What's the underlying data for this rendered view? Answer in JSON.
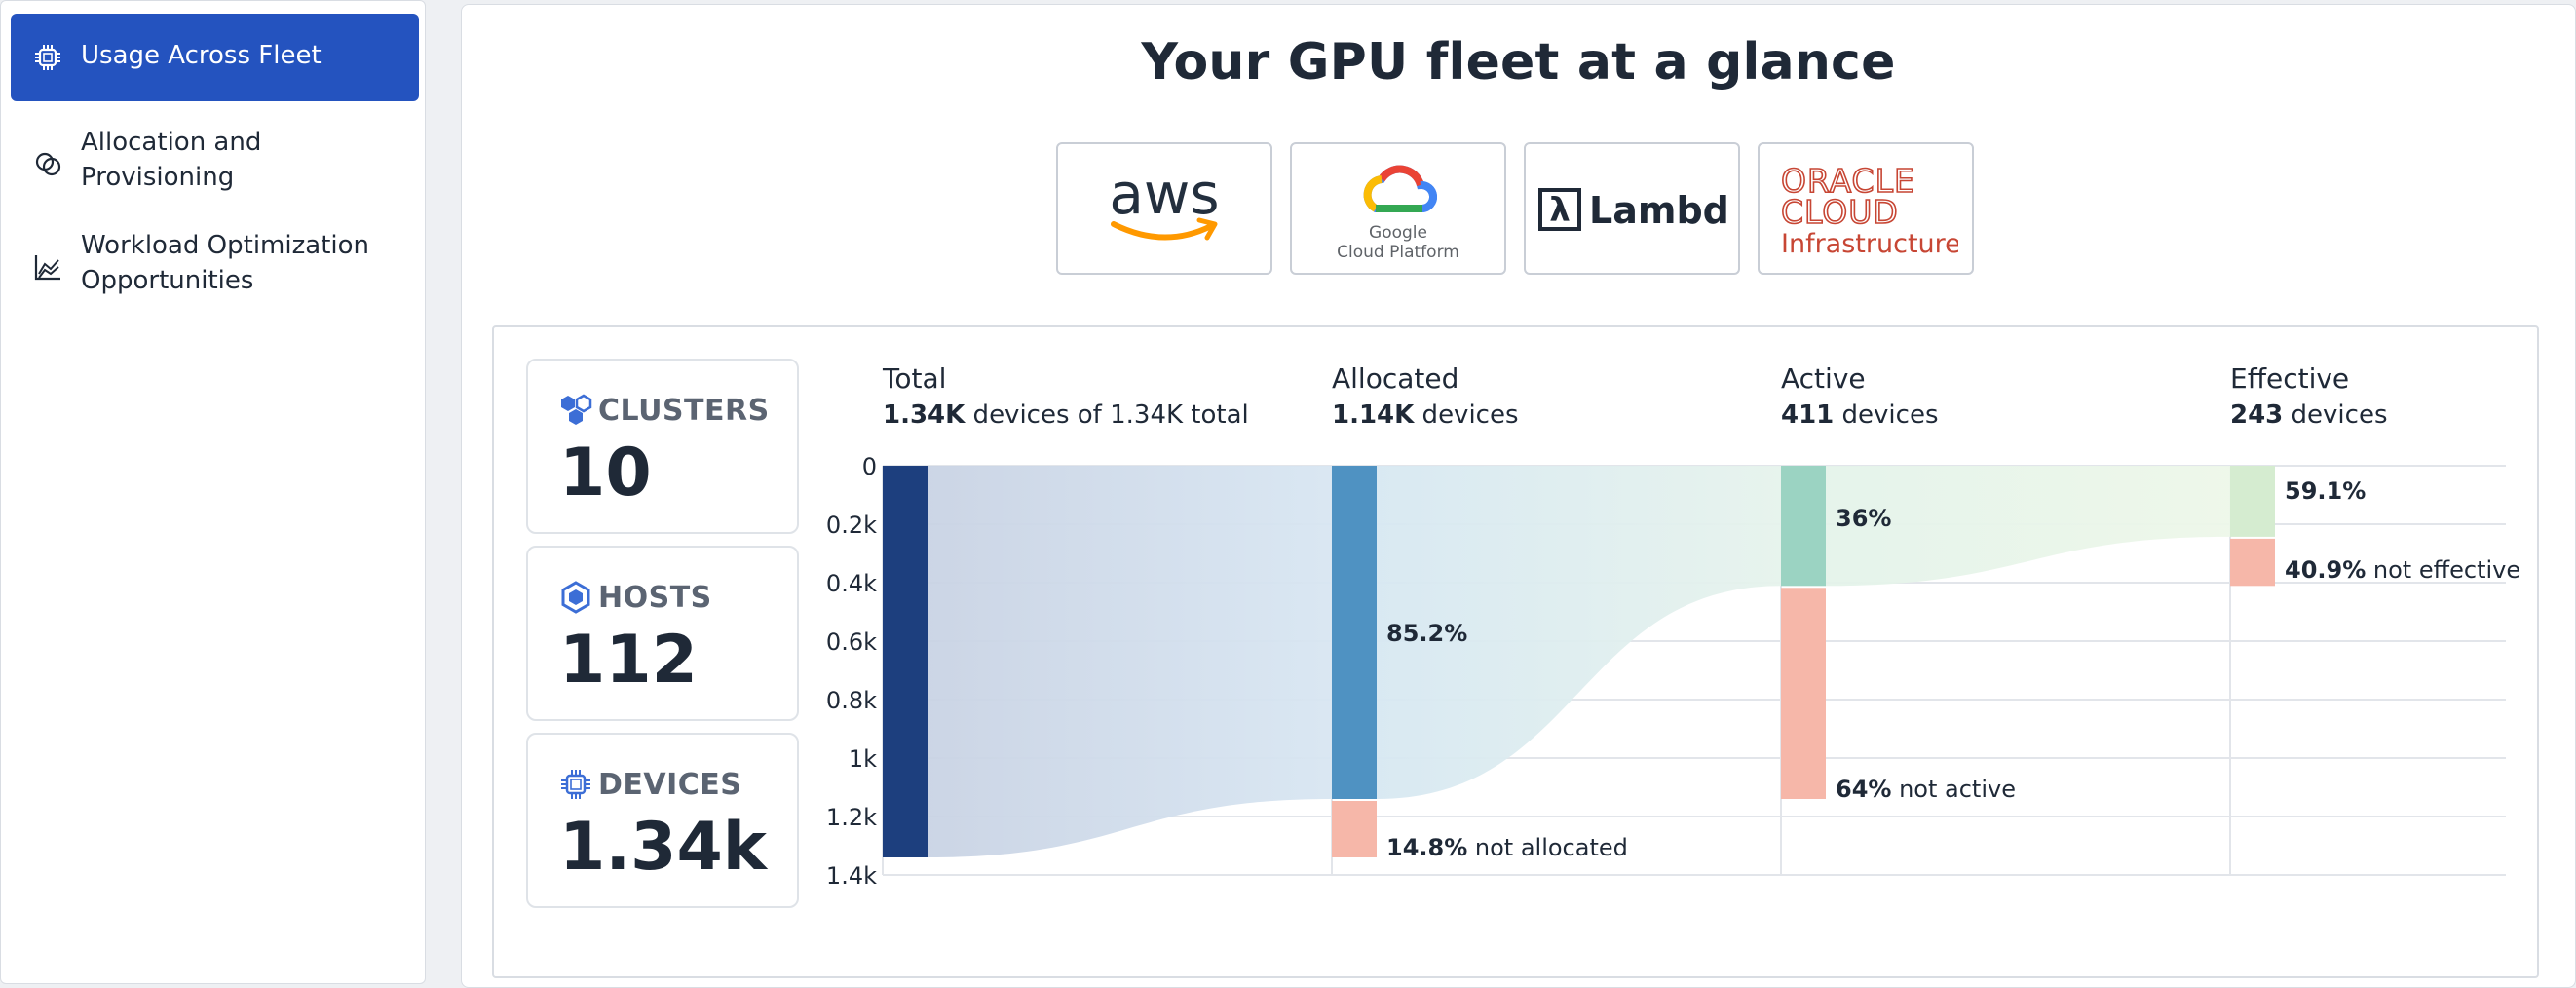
{
  "sidebar": {
    "items": [
      {
        "label": "Usage Across Fleet",
        "icon": "chip-icon",
        "active": true
      },
      {
        "label": "Allocation and Provisioning",
        "icon": "overlap-circles-icon",
        "active": false
      },
      {
        "label": "Workload Optimization Opportunities",
        "icon": "area-chart-icon",
        "active": false
      }
    ]
  },
  "main": {
    "title": "Your GPU fleet at a glance",
    "providers": [
      {
        "name": "aws",
        "logo_text": "aws",
        "color": "#232f3e",
        "accent": "#ff9900"
      },
      {
        "name": "Google Cloud Platform",
        "logo_text_1": "Google",
        "logo_text_2": "Cloud Platform"
      },
      {
        "name": "Lambda",
        "logo_text": "Lambda",
        "glyph": "λ"
      },
      {
        "name": "Oracle Cloud Infrastructure",
        "logo_text_1": "ORACLE",
        "logo_text_2": "CLOUD",
        "logo_text_3": "Infrastructure",
        "color": "#c74634"
      }
    ],
    "stats": [
      {
        "label": "CLUSTERS",
        "value": "10",
        "icon": "clusters-icon"
      },
      {
        "label": "HOSTS",
        "value": "112",
        "icon": "hexagon-icon"
      },
      {
        "label": "DEVICES",
        "value": "1.34k",
        "icon": "chip-icon"
      }
    ]
  },
  "chart_data": {
    "type": "sankey-bar",
    "y_ticks": [
      "0",
      "0.2k",
      "0.4k",
      "0.6k",
      "0.8k",
      "1k",
      "1.2k",
      "1.4k"
    ],
    "ylim": [
      0,
      1400
    ],
    "stages": [
      {
        "title": "Total",
        "subtitle_bold": "1.34K",
        "subtitle_rest": " devices of 1.34K total",
        "value": 1340,
        "remainder": 0,
        "color": "#1d3f7e"
      },
      {
        "title": "Allocated",
        "subtitle_bold": "1.14K",
        "subtitle_rest": " devices",
        "value": 1140,
        "remainder": 200,
        "color": "#4f92c2",
        "pct_label": "85.2%",
        "rem_pct": "14.8%",
        "rem_label": "not allocated"
      },
      {
        "title": "Active",
        "subtitle_bold": "411",
        "subtitle_rest": " devices",
        "value": 411,
        "remainder": 729,
        "color": "#9bd3c2",
        "pct_label": "36%",
        "rem_pct": "64%",
        "rem_label": "not active"
      },
      {
        "title": "Effective",
        "subtitle_bold": "243",
        "subtitle_rest": " devices",
        "value": 243,
        "remainder": 168,
        "color": "#d5ecd0",
        "pct_label": "59.1%",
        "rem_pct": "40.9%",
        "rem_label": "not effective"
      }
    ],
    "remainder_color": "#f6b7a9"
  }
}
